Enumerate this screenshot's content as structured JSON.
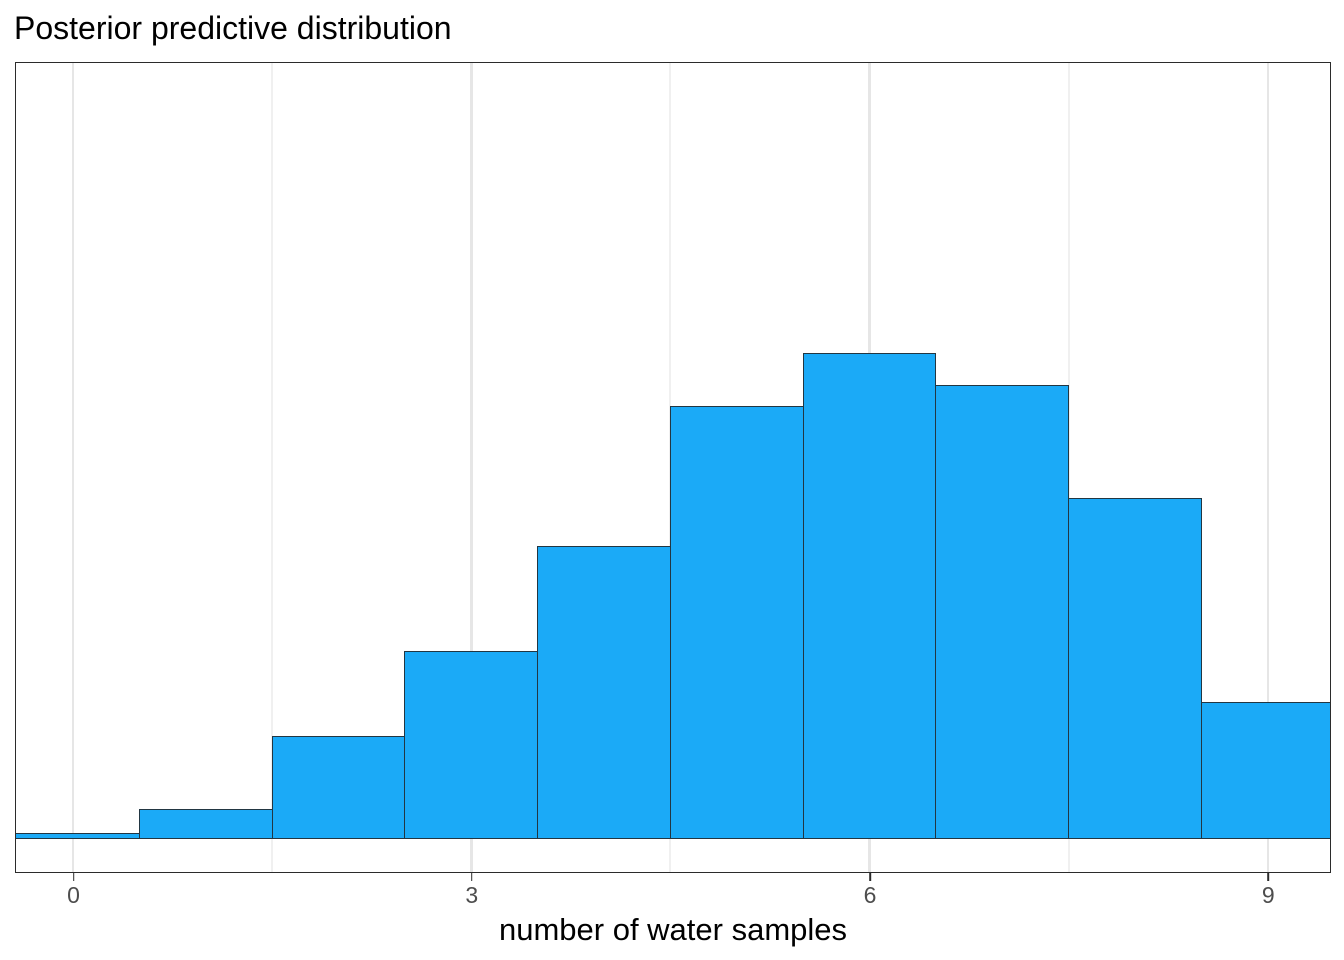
{
  "chart": {
    "title": "Posterior predictive distribution",
    "x_axis": {
      "label": "number of water samples",
      "tick_labels": [
        "0",
        "3",
        "6",
        "9"
      ],
      "tick_values": [
        0,
        3,
        6,
        9
      ],
      "minor_gridline_values": [
        1.5,
        4.5,
        7.5
      ]
    },
    "y_axis": {
      "label": "",
      "tick_labels": []
    },
    "colors": {
      "bar_fill": "#1baaf7",
      "bar_outline": "#223642",
      "panel_border": "#2b2b2b",
      "grid_major": "#e6e6e6",
      "grid_minor": "#f0f0f0",
      "tick_mark": "#2b2b2b",
      "tick_label": "#4d4d4d",
      "title_text": "#000000"
    }
  },
  "chart_data": {
    "type": "bar",
    "subtype": "histogram",
    "title": "Posterior predictive distribution",
    "xlabel": "number of water samples",
    "ylabel": "",
    "categories": [
      0,
      1,
      2,
      3,
      4,
      5,
      6,
      7,
      8,
      9
    ],
    "values": [
      0.0025,
      0.012,
      0.0417,
      0.0761,
      0.1186,
      0.1753,
      0.1968,
      0.1838,
      0.1381,
      0.0555
    ],
    "values_note": "relative frequencies estimated from bar heights; y axis is unlabeled in the figure",
    "bar_width": 1,
    "x_ticks": [
      0,
      3,
      6,
      9
    ],
    "xlim": [
      -0.45,
      9.45
    ],
    "ylim_relative": [
      0,
      1.067
    ],
    "grid": "vertical major at 0,3,6,9 and minor at 1.5,4.5,7.5",
    "legend": "none",
    "peak_x": 6
  }
}
